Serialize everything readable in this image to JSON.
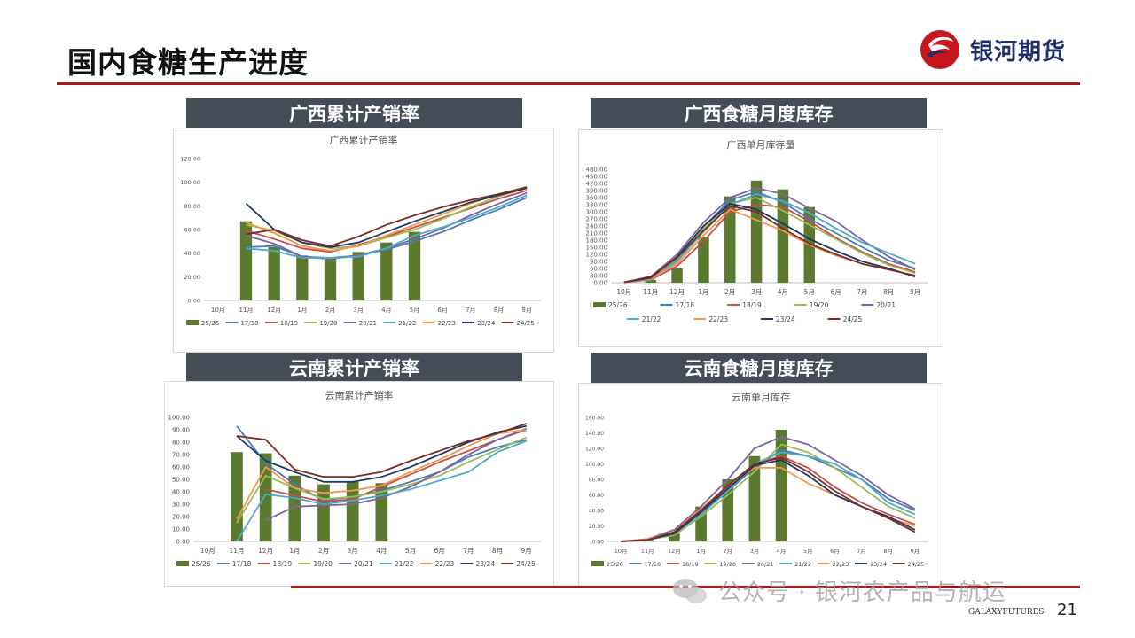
{
  "header": {
    "title": "国内食糖生产进度",
    "logo_text": "银河期货"
  },
  "sections": [
    {
      "banner": "广西累计产销率"
    },
    {
      "banner": "广西食糖月度库存"
    },
    {
      "banner": "云南累计产销率"
    },
    {
      "banner": "云南食糖月度库存"
    }
  ],
  "footer": {
    "watermark": "公众号 · 银河农产品与航运",
    "brand": "GALAXYFUTURES",
    "page_number": "21"
  },
  "colors": {
    "accent": "#a8161c",
    "banner": "#444c57",
    "bars": "#5c7a2f"
  },
  "chart_data": [
    {
      "type": "bar",
      "title": "广西累计产销率",
      "xlabel": "",
      "ylabel": "",
      "categories": [
        "10月",
        "11月",
        "12月",
        "1月",
        "2月",
        "3月",
        "4月",
        "5月",
        "6月",
        "7月",
        "8月",
        "9月"
      ],
      "ylim": [
        0,
        120
      ],
      "yticks": [
        "0.00",
        "20.00",
        "40.00",
        "60.00",
        "80.00",
        "100.00",
        "120.00"
      ],
      "legend_position": "bottom",
      "series": [
        {
          "name": "25/26",
          "kind": "bar",
          "color": "#5c7a2f",
          "values": [
            null,
            67,
            45,
            38,
            35,
            41,
            49,
            58,
            null,
            null,
            null,
            null
          ]
        },
        {
          "name": "17/18",
          "kind": "line",
          "color": "#4a7ab5",
          "values": [
            null,
            45,
            46,
            37,
            36,
            38,
            43,
            50,
            58,
            68,
            77,
            87
          ]
        },
        {
          "name": "18/19",
          "kind": "line",
          "color": "#c0504d",
          "values": [
            null,
            59,
            52,
            44,
            41,
            47,
            54,
            62,
            70,
            78,
            86,
            93
          ]
        },
        {
          "name": "19/20",
          "kind": "line",
          "color": "#9bbb59",
          "values": [
            null,
            64,
            59,
            49,
            44,
            46,
            53,
            60,
            69,
            79,
            88,
            95
          ]
        },
        {
          "name": "20/21",
          "kind": "line",
          "color": "#8064a2",
          "values": [
            null,
            55,
            48,
            37,
            35,
            38,
            44,
            52,
            61,
            72,
            82,
            91
          ]
        },
        {
          "name": "21/22",
          "kind": "line",
          "color": "#4bacc6",
          "values": [
            null,
            44,
            42,
            36,
            36,
            37,
            44,
            55,
            62,
            70,
            79,
            89
          ]
        },
        {
          "name": "22/23",
          "kind": "line",
          "color": "#f79646",
          "values": [
            null,
            66,
            57,
            46,
            42,
            46,
            55,
            64,
            73,
            82,
            90,
            95
          ]
        },
        {
          "name": "23/24",
          "kind": "line",
          "color": "#1f3864",
          "values": [
            null,
            82,
            60,
            49,
            45,
            49,
            58,
            67,
            75,
            83,
            89,
            95
          ]
        },
        {
          "name": "24/25",
          "kind": "line",
          "color": "#7b2c26",
          "values": [
            null,
            56,
            60,
            51,
            46,
            54,
            64,
            72,
            79,
            85,
            90,
            96
          ]
        }
      ]
    },
    {
      "type": "bar",
      "title": "广西单月库存量",
      "xlabel": "",
      "ylabel": "",
      "categories": [
        "10月",
        "11月",
        "12月",
        "1月",
        "2月",
        "3月",
        "4月",
        "5月",
        "6月",
        "7月",
        "8月",
        "9月"
      ],
      "ylim": [
        0,
        480
      ],
      "yticks": [
        "0.00",
        "30.00",
        "60.00",
        "90.00",
        "120.00",
        "150.00",
        "180.00",
        "210.00",
        "240.00",
        "270.00",
        "300.00",
        "330.00",
        "360.00",
        "390.00",
        "420.00",
        "450.00",
        "480.00"
      ],
      "legend_position": "bottom",
      "series": [
        {
          "name": "25/26",
          "kind": "bar",
          "color": "#5c7a2f",
          "values": [
            null,
            12,
            60,
            195,
            365,
            432,
            395,
            320,
            null,
            null,
            null,
            null
          ]
        },
        {
          "name": "17/18",
          "kind": "line",
          "color": "#4a7ab5",
          "values": [
            2,
            15,
            95,
            235,
            350,
            385,
            340,
            270,
            210,
            150,
            95,
            60
          ]
        },
        {
          "name": "18/19",
          "kind": "line",
          "color": "#c0504d",
          "values": [
            2,
            12,
            70,
            175,
            300,
            330,
            320,
            260,
            190,
            130,
            80,
            45
          ]
        },
        {
          "name": "19/20",
          "kind": "line",
          "color": "#9bbb59",
          "values": [
            2,
            20,
            100,
            230,
            335,
            360,
            305,
            245,
            185,
            125,
            75,
            40
          ]
        },
        {
          "name": "20/21",
          "kind": "line",
          "color": "#8064a2",
          "values": [
            2,
            25,
            120,
            255,
            360,
            400,
            375,
            315,
            260,
            180,
            110,
            55
          ]
        },
        {
          "name": "21/22",
          "kind": "line",
          "color": "#4bacc6",
          "values": [
            2,
            12,
            90,
            215,
            330,
            375,
            345,
            295,
            230,
            170,
            125,
            80
          ]
        },
        {
          "name": "22/23",
          "kind": "line",
          "color": "#f79646",
          "values": [
            2,
            15,
            80,
            200,
            310,
            265,
            220,
            160,
            115,
            80,
            55,
            30
          ]
        },
        {
          "name": "23/24",
          "kind": "line",
          "color": "#1f3864",
          "values": [
            2,
            20,
            110,
            240,
            335,
            310,
            250,
            185,
            135,
            90,
            60,
            25
          ]
        },
        {
          "name": "24/25",
          "kind": "line",
          "color": "#7b2c26",
          "values": [
            2,
            25,
            105,
            220,
            325,
            300,
            230,
            165,
            120,
            80,
            55,
            30
          ]
        }
      ]
    },
    {
      "type": "bar",
      "title": "云南累计产销率",
      "xlabel": "",
      "ylabel": "",
      "categories": [
        "10月",
        "11月",
        "12月",
        "1月",
        "2月",
        "3月",
        "4月",
        "5月",
        "6月",
        "7月",
        "8月",
        "9月"
      ],
      "ylim": [
        0,
        100
      ],
      "yticks": [
        "0.00",
        "10.00",
        "20.00",
        "30.00",
        "40.00",
        "50.00",
        "60.00",
        "70.00",
        "80.00",
        "90.00",
        "100.00"
      ],
      "legend_position": "bottom",
      "series": [
        {
          "name": "25/26",
          "kind": "bar",
          "color": "#5c7a2f",
          "values": [
            null,
            72,
            71,
            53,
            46,
            48,
            47,
            null,
            null,
            null,
            null,
            null
          ]
        },
        {
          "name": "17/18",
          "kind": "line",
          "color": "#4a7ab5",
          "values": [
            null,
            93,
            63,
            46,
            33,
            36,
            41,
            48,
            56,
            68,
            76,
            82
          ]
        },
        {
          "name": "18/19",
          "kind": "line",
          "color": "#c0504d",
          "values": [
            null,
            null,
            42,
            37,
            32,
            34,
            44,
            54,
            64,
            73,
            82,
            90
          ]
        },
        {
          "name": "19/20",
          "kind": "line",
          "color": "#9bbb59",
          "values": [
            null,
            15,
            53,
            43,
            34,
            36,
            40,
            46,
            53,
            64,
            74,
            84
          ]
        },
        {
          "name": "20/21",
          "kind": "line",
          "color": "#8064a2",
          "values": [
            null,
            null,
            17,
            28,
            29,
            30,
            35,
            44,
            56,
            70,
            82,
            91
          ]
        },
        {
          "name": "21/22",
          "kind": "line",
          "color": "#4bacc6",
          "values": [
            null,
            0,
            38,
            35,
            30,
            33,
            37,
            42,
            49,
            56,
            72,
            81
          ]
        },
        {
          "name": "22/23",
          "kind": "line",
          "color": "#f79646",
          "values": [
            null,
            18,
            60,
            43,
            39,
            41,
            45,
            56,
            66,
            77,
            87,
            90
          ]
        },
        {
          "name": "23/24",
          "kind": "line",
          "color": "#1f3864",
          "values": [
            null,
            85,
            65,
            56,
            48,
            48,
            52,
            60,
            70,
            80,
            88,
            93
          ]
        },
        {
          "name": "24/25",
          "kind": "line",
          "color": "#7b2c26",
          "values": [
            null,
            85,
            82,
            58,
            52,
            52,
            56,
            65,
            73,
            81,
            87,
            95
          ]
        }
      ]
    },
    {
      "type": "bar",
      "title": "云南单月库存",
      "xlabel": "",
      "ylabel": "",
      "categories": [
        "10月",
        "11月",
        "12月",
        "1月",
        "2月",
        "3月",
        "4月",
        "5月",
        "6月",
        "7月",
        "8月",
        "9月"
      ],
      "ylim": [
        0,
        160
      ],
      "yticks": [
        "0.00",
        "20.00",
        "40.00",
        "60.00",
        "80.00",
        "100.00",
        "120.00",
        "140.00",
        "160.00"
      ],
      "legend_position": "bottom",
      "series": [
        {
          "name": "25/26",
          "kind": "bar",
          "color": "#5c7a2f",
          "values": [
            null,
            2,
            10,
            45,
            80,
            110,
            144,
            null,
            null,
            null,
            null,
            null
          ]
        },
        {
          "name": "17/18",
          "kind": "line",
          "color": "#4a7ab5",
          "values": [
            0,
            2,
            12,
            38,
            65,
            95,
            118,
            110,
            95,
            80,
            55,
            40
          ]
        },
        {
          "name": "18/19",
          "kind": "line",
          "color": "#c0504d",
          "values": [
            0,
            2,
            10,
            40,
            70,
            100,
            110,
            95,
            70,
            50,
            35,
            22
          ]
        },
        {
          "name": "19/20",
          "kind": "line",
          "color": "#9bbb59",
          "values": [
            0,
            2,
            8,
            32,
            60,
            90,
            125,
            115,
            95,
            70,
            45,
            30
          ]
        },
        {
          "name": "20/21",
          "kind": "line",
          "color": "#8064a2",
          "values": [
            0,
            3,
            15,
            45,
            80,
            120,
            135,
            125,
            105,
            85,
            60,
            42
          ]
        },
        {
          "name": "21/22",
          "kind": "line",
          "color": "#4bacc6",
          "values": [
            0,
            2,
            10,
            35,
            65,
            100,
            115,
            110,
            100,
            80,
            50,
            35
          ]
        },
        {
          "name": "22/23",
          "kind": "line",
          "color": "#f79646",
          "values": [
            0,
            3,
            12,
            42,
            72,
            95,
            95,
            75,
            60,
            45,
            30,
            20
          ]
        },
        {
          "name": "23/24",
          "kind": "line",
          "color": "#1f3864",
          "values": [
            0,
            2,
            10,
            38,
            68,
            98,
            105,
            85,
            60,
            45,
            32,
            15
          ]
        },
        {
          "name": "24/25",
          "kind": "line",
          "color": "#7b2c26",
          "values": [
            0,
            2,
            12,
            40,
            72,
            100,
            108,
            90,
            65,
            45,
            30,
            12
          ]
        }
      ]
    }
  ]
}
